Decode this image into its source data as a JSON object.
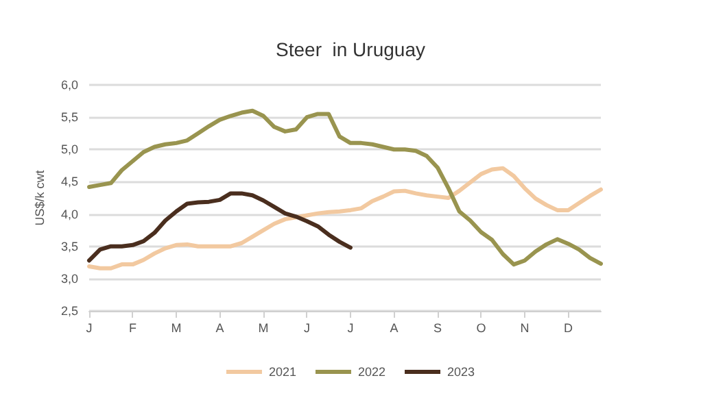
{
  "chart_data": {
    "type": "line",
    "title": "Steer  in Uruguay",
    "ylabel": "US$/k cwt",
    "categories": [
      "J",
      null,
      null,
      null,
      "F",
      null,
      null,
      null,
      "M",
      null,
      null,
      null,
      "A",
      null,
      null,
      null,
      "M",
      null,
      null,
      null,
      "J",
      null,
      null,
      null,
      "J",
      null,
      null,
      null,
      "A",
      null,
      null,
      null,
      "S",
      null,
      null,
      null,
      "O",
      null,
      null,
      null,
      "N",
      null,
      null,
      null,
      "D",
      null,
      null,
      null
    ],
    "ylim": [
      2.5,
      6
    ],
    "yticks": [
      {
        "value": 2.5,
        "label": "2,5"
      },
      {
        "value": 3,
        "label": "3,0"
      },
      {
        "value": 3.5,
        "label": "3,5"
      },
      {
        "value": 4,
        "label": "4,0"
      },
      {
        "value": 4.5,
        "label": "4,5"
      },
      {
        "value": 5,
        "label": "5,0"
      },
      {
        "value": 5.5,
        "label": "5,5"
      },
      {
        "value": 6,
        "label": "6,0"
      }
    ],
    "grid": "y",
    "legend": "bottom",
    "marker": "none",
    "line_style": "solid",
    "series": [
      {
        "name": "2021",
        "color": "#f2c9a0",
        "values": [
          3.19,
          3.16,
          3.16,
          3.22,
          3.22,
          3.29,
          3.39,
          3.47,
          3.52,
          3.53,
          3.5,
          3.5,
          3.5,
          3.5,
          3.55,
          3.65,
          3.75,
          3.85,
          3.92,
          3.95,
          3.98,
          4.01,
          4.03,
          4.04,
          4.06,
          4.09,
          4.2,
          4.27,
          4.35,
          4.36,
          4.32,
          4.29,
          4.27,
          4.25,
          4.36,
          4.49,
          4.62,
          4.69,
          4.71,
          4.59,
          4.4,
          4.24,
          4.14,
          4.06,
          4.06,
          4.17,
          4.28,
          4.38
        ]
      },
      {
        "name": "2022",
        "color": "#99944f",
        "values": [
          4.42,
          4.45,
          4.48,
          4.68,
          4.82,
          4.96,
          5.04,
          5.08,
          5.1,
          5.14,
          5.25,
          5.36,
          5.46,
          5.52,
          5.57,
          5.6,
          5.52,
          5.35,
          5.28,
          5.31,
          5.5,
          5.55,
          5.55,
          5.2,
          5.1,
          5.1,
          5.08,
          5.04,
          5.0,
          5.0,
          4.98,
          4.9,
          4.72,
          4.4,
          4.04,
          3.9,
          3.72,
          3.6,
          3.38,
          3.22,
          3.28,
          3.42,
          3.53,
          3.61,
          3.54,
          3.45,
          3.32,
          3.23
        ]
      },
      {
        "name": "2023",
        "color": "#4a2e1e",
        "values": [
          3.28,
          3.45,
          3.5,
          3.5,
          3.52,
          3.58,
          3.71,
          3.9,
          4.04,
          4.16,
          4.18,
          4.19,
          4.22,
          4.32,
          4.32,
          4.29,
          4.21,
          4.11,
          4.01,
          3.96,
          3.89,
          3.81,
          3.68,
          3.57,
          3.48,
          null,
          null,
          null,
          null,
          null,
          null,
          null,
          null,
          null,
          null,
          null,
          null,
          null,
          null,
          null,
          null,
          null,
          null,
          null,
          null,
          null,
          null,
          null
        ]
      }
    ]
  }
}
